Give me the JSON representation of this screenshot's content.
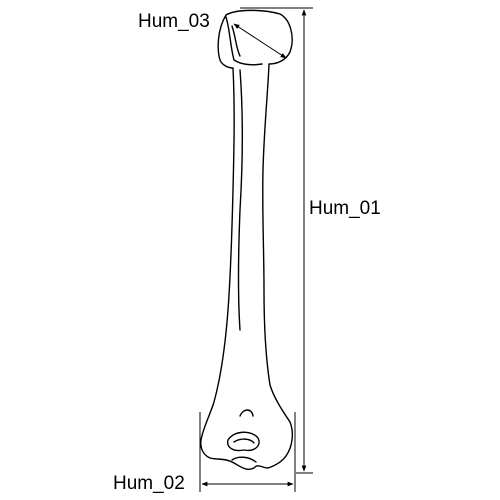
{
  "labels": {
    "max_length": "Hum_01",
    "epicondylar_width": "Hum_02",
    "head_diameter": "Hum_03"
  },
  "colors": {
    "stroke": "#000000",
    "background": "#ffffff",
    "bone_fill": "#ffffff"
  }
}
